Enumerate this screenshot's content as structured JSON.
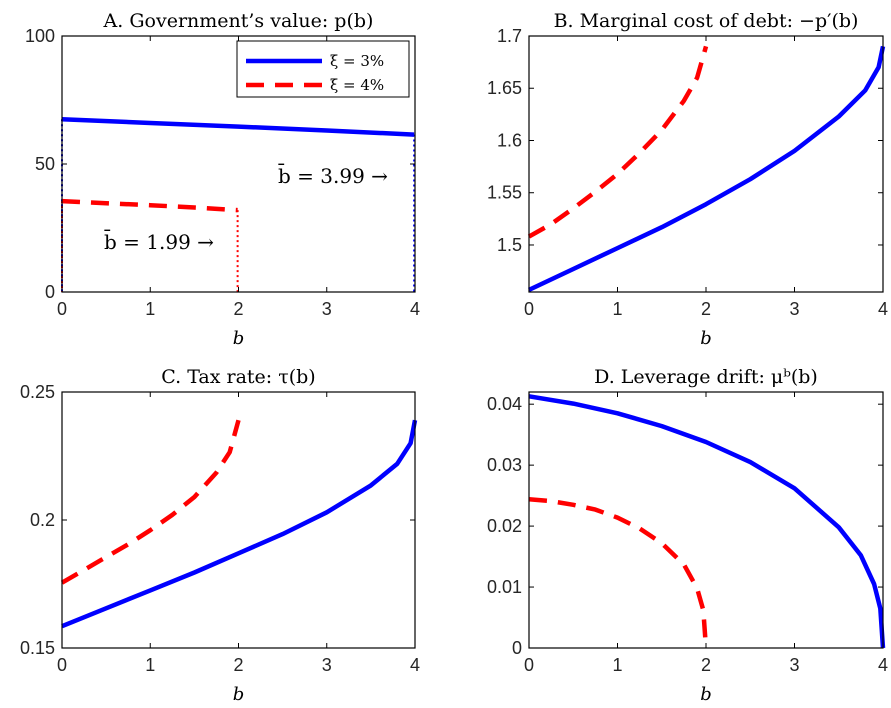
{
  "colors": {
    "blue": "#0000ff",
    "red": "#ff0000"
  },
  "chart_data": [
    {
      "type": "line",
      "title": "A. Government’s value: p(b)",
      "xlabel": "b",
      "xlim": [
        0,
        4
      ],
      "ylim": [
        0,
        100
      ],
      "xticks": [
        "0",
        "1",
        "2",
        "3",
        "4"
      ],
      "yticks": [
        "0",
        "50",
        "100"
      ],
      "legend": {
        "position": "top-right",
        "entries": [
          "ξ = 3%",
          "ξ = 4%"
        ]
      },
      "annotations": [
        "b̄ = 3.99 →",
        "b̄ = 1.99 →"
      ],
      "series": [
        {
          "name": "ξ = 3%",
          "x": [
            0,
            1,
            2,
            3,
            3.99
          ],
          "y": [
            67.5,
            66.0,
            64.6,
            63.1,
            61.5
          ]
        },
        {
          "name": "ξ = 4%",
          "x": [
            0,
            0.5,
            1,
            1.5,
            1.99
          ],
          "y": [
            35.5,
            34.7,
            33.9,
            33.0,
            32.0
          ]
        }
      ]
    },
    {
      "type": "line",
      "title": "B. Marginal cost of debt: −p′(b)",
      "xlabel": "b",
      "xlim": [
        0,
        4
      ],
      "ylim": [
        1.455,
        1.7
      ],
      "xticks": [
        "0",
        "1",
        "2",
        "3",
        "4"
      ],
      "yticks": [
        "1.5",
        "1.55",
        "1.6",
        "1.65",
        "1.7"
      ],
      "series": [
        {
          "name": "ξ = 3%",
          "x": [
            0,
            0.5,
            1,
            1.5,
            2,
            2.5,
            3,
            3.5,
            3.8,
            3.95,
            4
          ],
          "y": [
            1.457,
            1.477,
            1.497,
            1.517,
            1.539,
            1.563,
            1.59,
            1.623,
            1.648,
            1.67,
            1.69
          ]
        },
        {
          "name": "ξ = 4%",
          "x": [
            0,
            0.25,
            0.5,
            0.75,
            1,
            1.25,
            1.5,
            1.75,
            1.9,
            2
          ],
          "y": [
            1.508,
            1.52,
            1.535,
            1.551,
            1.568,
            1.588,
            1.61,
            1.638,
            1.66,
            1.69
          ]
        }
      ]
    },
    {
      "type": "line",
      "title": "C. Tax rate: τ(b)",
      "xlabel": "b",
      "xlim": [
        0,
        4
      ],
      "ylim": [
        0.15,
        0.25
      ],
      "xticks": [
        "0",
        "1",
        "2",
        "3",
        "4"
      ],
      "yticks": [
        "0.15",
        "0.2",
        "0.25"
      ],
      "series": [
        {
          "name": "ξ = 3%",
          "x": [
            0,
            0.5,
            1,
            1.5,
            2,
            2.5,
            3,
            3.5,
            3.8,
            3.95,
            4
          ],
          "y": [
            0.1585,
            0.1655,
            0.1725,
            0.1795,
            0.187,
            0.1945,
            0.203,
            0.2135,
            0.222,
            0.23,
            0.239
          ]
        },
        {
          "name": "ξ = 4%",
          "x": [
            0,
            0.25,
            0.5,
            0.75,
            1,
            1.25,
            1.5,
            1.75,
            1.9,
            2
          ],
          "y": [
            0.1755,
            0.1805,
            0.1855,
            0.1905,
            0.196,
            0.202,
            0.209,
            0.2185,
            0.2265,
            0.239
          ]
        }
      ]
    },
    {
      "type": "line",
      "title": "D. Leverage drift: μᵇ(b)",
      "xlabel": "b",
      "xlim": [
        0,
        4
      ],
      "ylim": [
        0,
        0.042
      ],
      "xticks": [
        "0",
        "1",
        "2",
        "3",
        "4"
      ],
      "yticks": [
        "0",
        "0.01",
        "0.02",
        "0.03",
        "0.04"
      ],
      "series": [
        {
          "name": "ξ = 3%",
          "x": [
            0,
            0.5,
            1,
            1.5,
            2,
            2.5,
            3,
            3.5,
            3.75,
            3.9,
            3.97,
            4
          ],
          "y": [
            0.0413,
            0.0401,
            0.0385,
            0.0364,
            0.0338,
            0.0305,
            0.0262,
            0.0198,
            0.0152,
            0.0105,
            0.0065,
            0
          ]
        },
        {
          "name": "ξ = 4%",
          "x": [
            0,
            0.25,
            0.5,
            0.75,
            1,
            1.25,
            1.5,
            1.75,
            1.9,
            1.97,
            2
          ],
          "y": [
            0.0244,
            0.0241,
            0.0235,
            0.0227,
            0.0214,
            0.0196,
            0.0172,
            0.0137,
            0.0098,
            0.0062,
            0
          ]
        }
      ]
    }
  ]
}
